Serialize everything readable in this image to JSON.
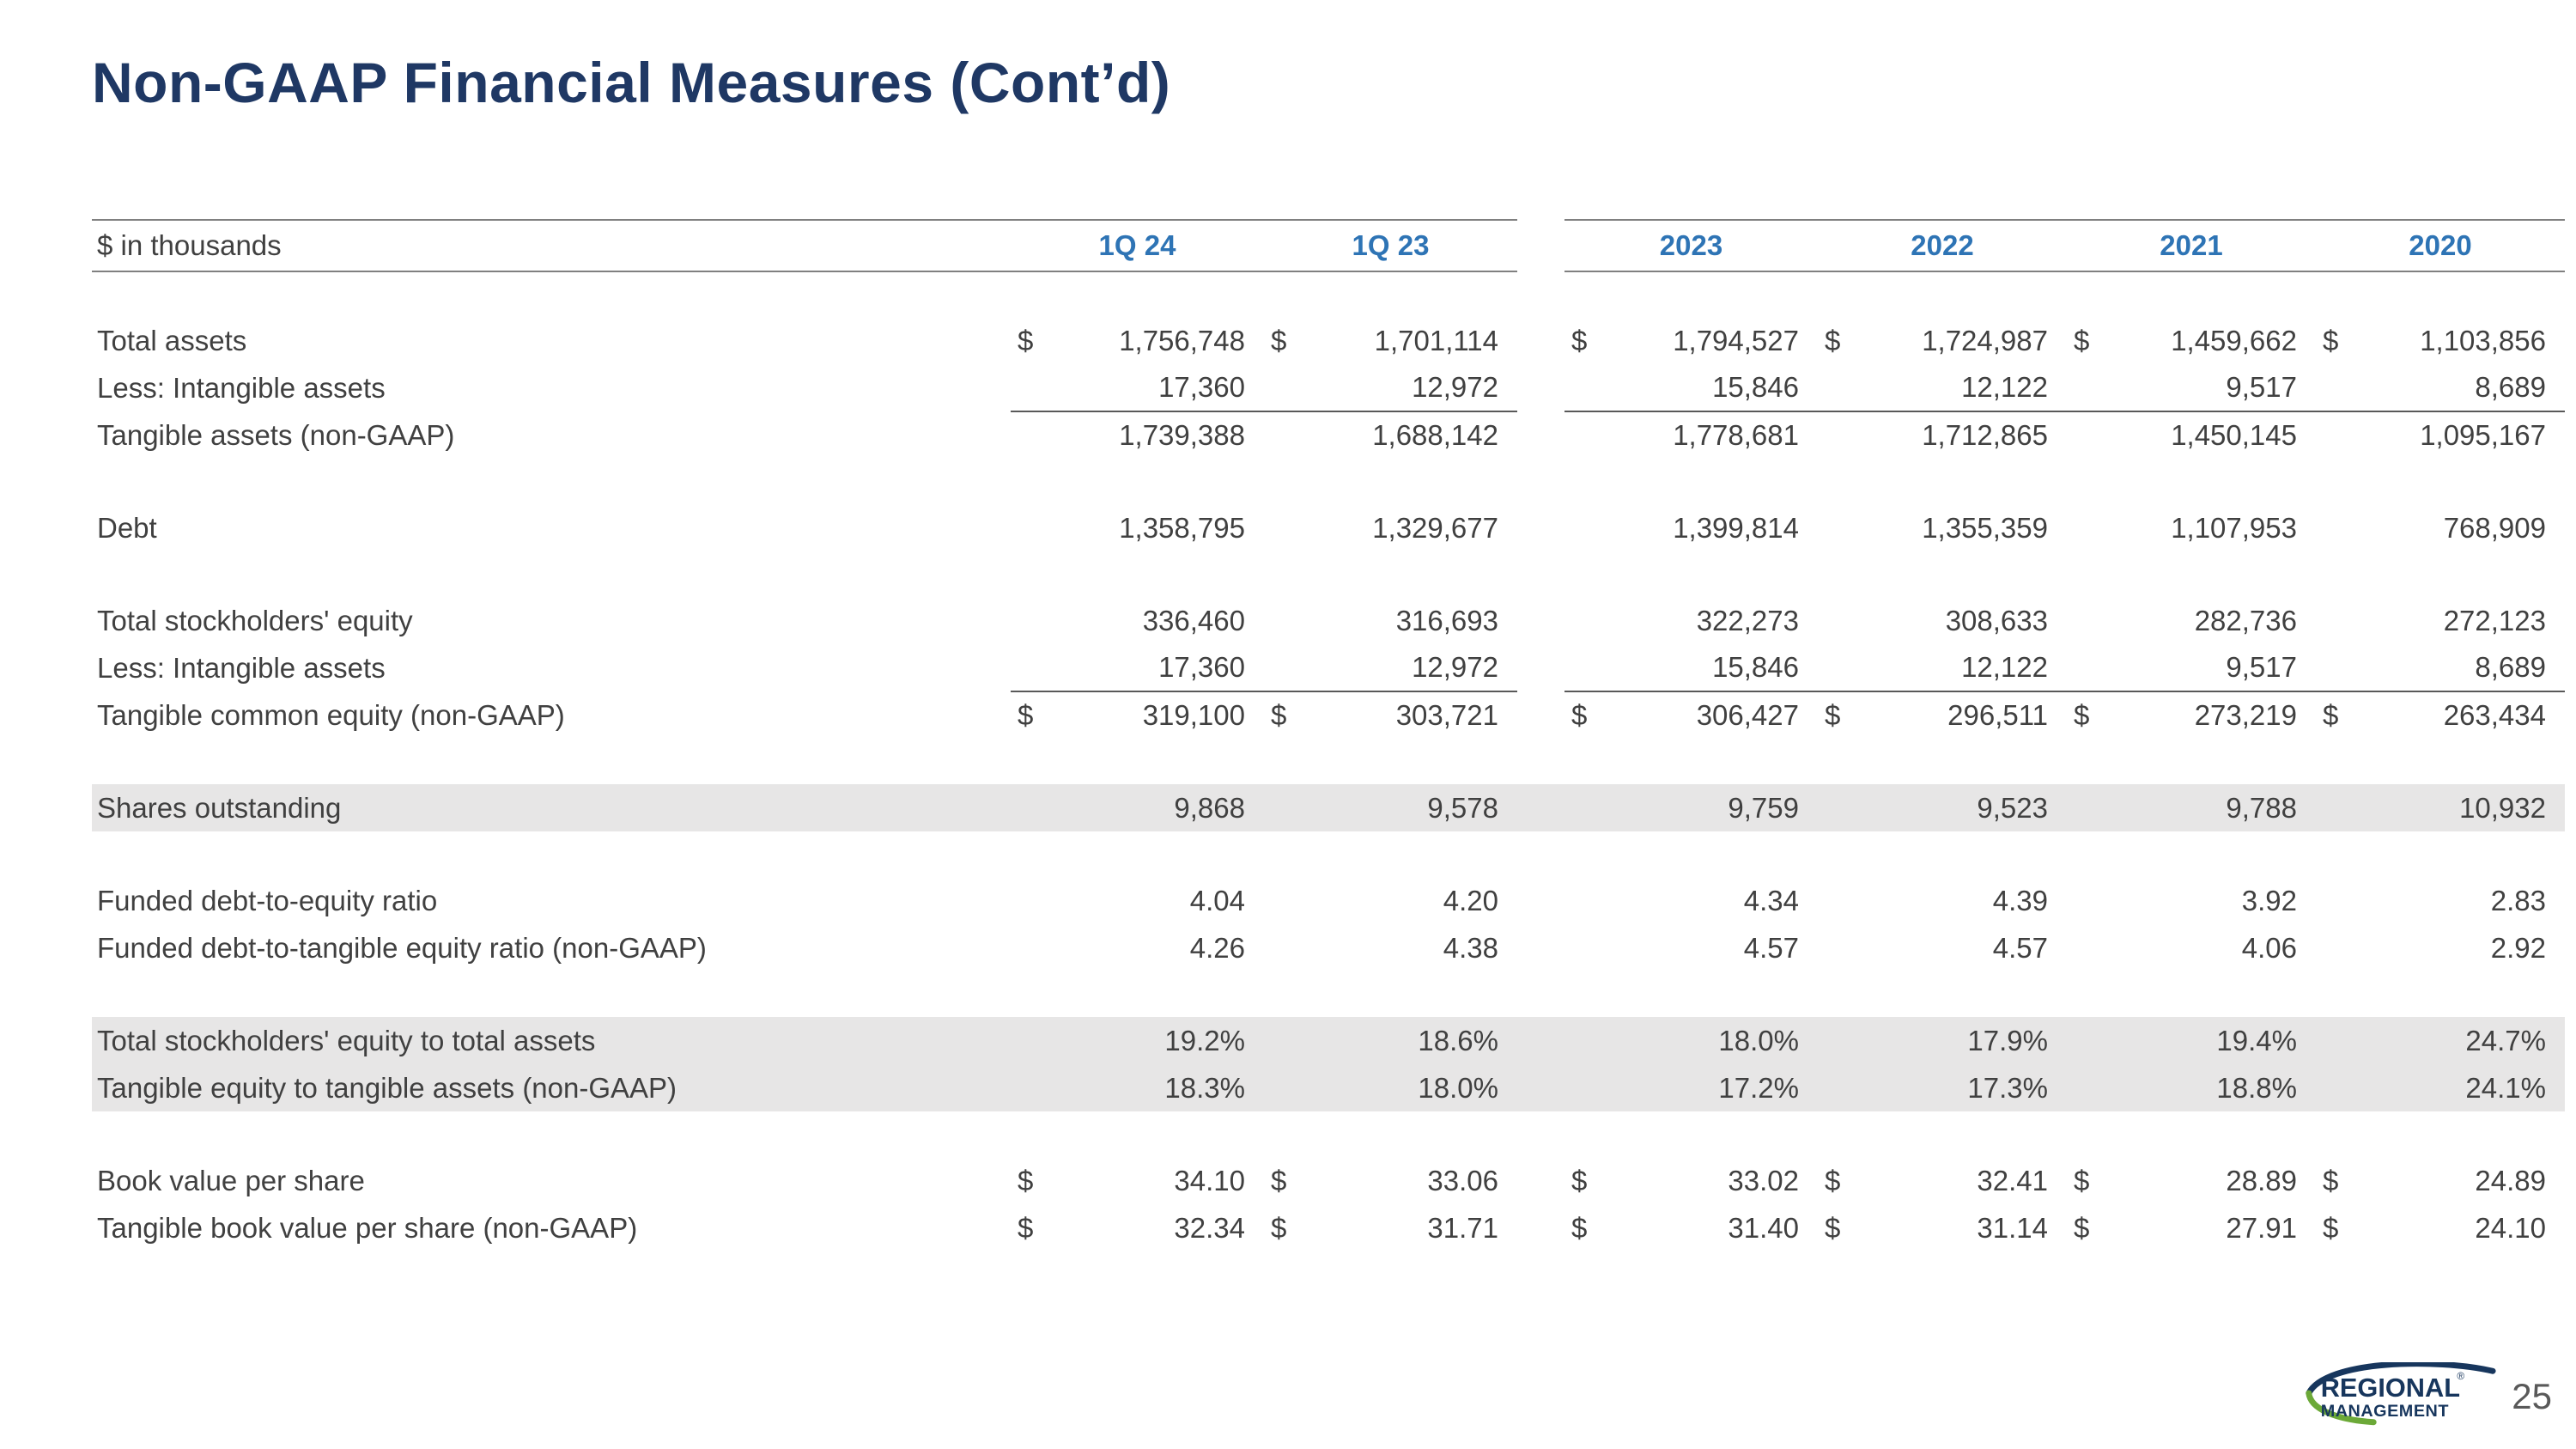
{
  "page": {
    "title": "Non-GAAP Financial Measures (Cont’d)",
    "page_number": "25"
  },
  "logo": {
    "line1": "REGIONAL",
    "line2": "MANAGEMENT",
    "registered": "®"
  },
  "colors": {
    "title_navy": "#1F3864",
    "header_blue": "#2E74B5",
    "body_text": "#404040",
    "highlight_gray": "#E7E6E6",
    "rule_gray": "#808080",
    "logo_navy": "#17365D",
    "logo_green": "#6CA938"
  },
  "table": {
    "unit_label": "$ in thousands",
    "column_groups": [
      [
        "1Q 24",
        "1Q 23"
      ],
      [
        "2023",
        "2022",
        "2021",
        "2020"
      ]
    ],
    "rows": [
      {
        "label": "Total assets",
        "dollar": true,
        "values": [
          "1,756,748",
          "1,701,114",
          "1,794,527",
          "1,724,987",
          "1,459,662",
          "1,103,856"
        ]
      },
      {
        "label": "Less: Intangible assets",
        "dollar": false,
        "rule_below": true,
        "values": [
          "17,360",
          "12,972",
          "15,846",
          "12,122",
          "9,517",
          "8,689"
        ]
      },
      {
        "label": "Tangible assets (non-GAAP)",
        "dollar": false,
        "values": [
          "1,739,388",
          "1,688,142",
          "1,778,681",
          "1,712,865",
          "1,450,145",
          "1,095,167"
        ]
      },
      {
        "spacer": true
      },
      {
        "label": "Debt",
        "dollar": false,
        "values": [
          "1,358,795",
          "1,329,677",
          "1,399,814",
          "1,355,359",
          "1,107,953",
          "768,909"
        ]
      },
      {
        "spacer": true
      },
      {
        "label": "Total stockholders' equity",
        "dollar": false,
        "values": [
          "336,460",
          "316,693",
          "322,273",
          "308,633",
          "282,736",
          "272,123"
        ]
      },
      {
        "label": "Less: Intangible assets",
        "dollar": false,
        "rule_below": true,
        "values": [
          "17,360",
          "12,972",
          "15,846",
          "12,122",
          "9,517",
          "8,689"
        ]
      },
      {
        "label": "Tangible common equity (non-GAAP)",
        "dollar": true,
        "values": [
          "319,100",
          "303,721",
          "306,427",
          "296,511",
          "273,219",
          "263,434"
        ]
      },
      {
        "spacer": true
      },
      {
        "label": "Shares outstanding",
        "dollar": false,
        "highlight": true,
        "values": [
          "9,868",
          "9,578",
          "9,759",
          "9,523",
          "9,788",
          "10,932"
        ]
      },
      {
        "spacer": true
      },
      {
        "label": "Funded debt-to-equity ratio",
        "dollar": false,
        "values": [
          "4.04",
          "4.20",
          "4.34",
          "4.39",
          "3.92",
          "2.83"
        ]
      },
      {
        "label": "Funded debt-to-tangible equity ratio (non-GAAP)",
        "dollar": false,
        "values": [
          "4.26",
          "4.38",
          "4.57",
          "4.57",
          "4.06",
          "2.92"
        ]
      },
      {
        "spacer": true
      },
      {
        "label": "Total stockholders' equity to total assets",
        "dollar": false,
        "highlight": true,
        "values": [
          "19.2%",
          "18.6%",
          "18.0%",
          "17.9%",
          "19.4%",
          "24.7%"
        ]
      },
      {
        "label": "Tangible equity to tangible assets (non-GAAP)",
        "dollar": false,
        "highlight": true,
        "values": [
          "18.3%",
          "18.0%",
          "17.2%",
          "17.3%",
          "18.8%",
          "24.1%"
        ]
      },
      {
        "spacer": true
      },
      {
        "label": "Book value per share",
        "dollar": true,
        "values": [
          "34.10",
          "33.06",
          "33.02",
          "32.41",
          "28.89",
          "24.89"
        ]
      },
      {
        "label": "Tangible book value per share (non-GAAP)",
        "dollar": true,
        "values": [
          "32.34",
          "31.71",
          "31.40",
          "31.14",
          "27.91",
          "24.10"
        ]
      }
    ]
  }
}
